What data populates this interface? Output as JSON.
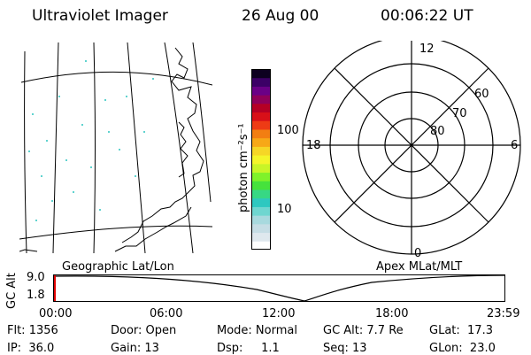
{
  "header": {
    "title": "Ultraviolet Imager",
    "date": "26 Aug 00",
    "time": "00:06:22 UT"
  },
  "colorbar": {
    "units_label": "photon cm⁻²s⁻¹",
    "tick_high": "100",
    "tick_low": "10",
    "colors": [
      "#ffffff",
      "#dfe8ee",
      "#c6dde5",
      "#a8d9de",
      "#6fd6d0",
      "#2ec8c0",
      "#37d884",
      "#46e23c",
      "#7ff22a",
      "#c8f527",
      "#f4f52a",
      "#f6d626",
      "#f7a817",
      "#f27e12",
      "#ee3b15",
      "#d81018",
      "#b50024",
      "#8f0059",
      "#6a0086",
      "#3c0066",
      "#0d0020"
    ]
  },
  "map": {
    "left_label": "Geographic Lat/Lon",
    "right_label": "Apex MLat/MLT"
  },
  "polar": {
    "mlt_labels": {
      "top": "12",
      "left": "18",
      "right": "6",
      "bottom": "0"
    },
    "lat_labels": [
      "60",
      "70",
      "80"
    ]
  },
  "timeline": {
    "y_title": "GC Alt",
    "y_high": "9.0",
    "y_low": "1.8",
    "x_ticks": [
      "00:00",
      "06:00",
      "12:00",
      "18:00",
      "23:59"
    ]
  },
  "status": {
    "flt": "Flt: 1356",
    "door": "Door: Open",
    "mode": "Mode: Normal",
    "gc_alt": "GC Alt: 7.7 Re",
    "glat": "GLat:  17.3",
    "ip": "IP:  36.0",
    "gain": "Gain: 13",
    "dsp": "Dsp:     1.1",
    "seq": "Seq: 13",
    "glon": "GLon:  23.0"
  }
}
